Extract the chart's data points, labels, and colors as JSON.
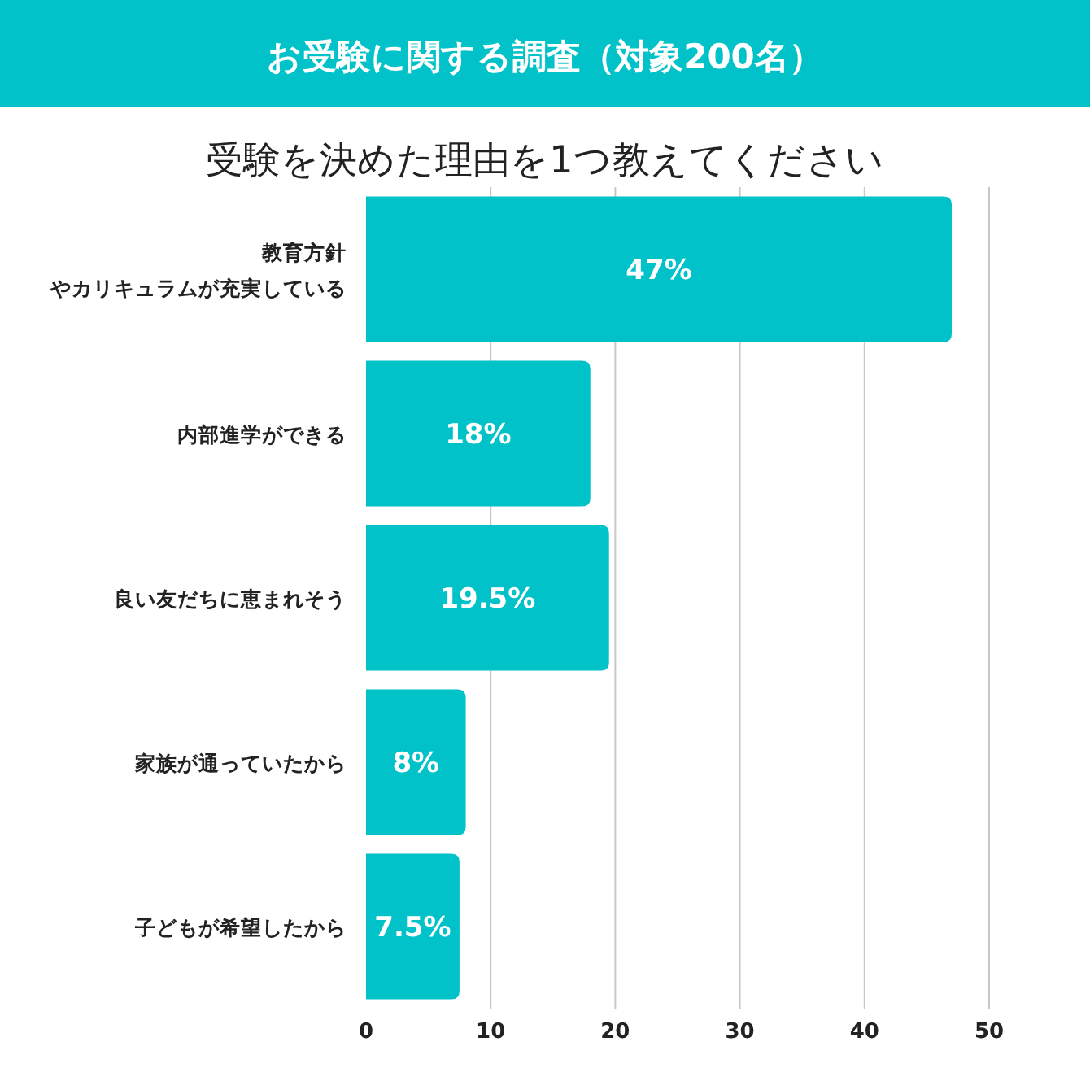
{
  "chart_data": {
    "type": "bar",
    "orientation": "horizontal",
    "title": "お受験に関する調査（対象200名）",
    "subtitle": "受験を決めた理由を1つ教えてください",
    "categories": [
      "教育方針やカリキュラムが充実している",
      "内部進学ができる",
      "良い友だちに恵まれそう",
      "家族が通っていたから",
      "子どもが希望したから"
    ],
    "values": [
      47,
      18,
      19.5,
      8,
      7.5
    ],
    "value_labels": [
      "47%",
      "18%",
      "19.5%",
      "8%",
      "7.5%"
    ],
    "color": "#00c2c8",
    "xlim": [
      0,
      50
    ],
    "xticks": [
      0,
      10,
      20,
      30,
      40,
      50
    ],
    "grid": "x"
  }
}
